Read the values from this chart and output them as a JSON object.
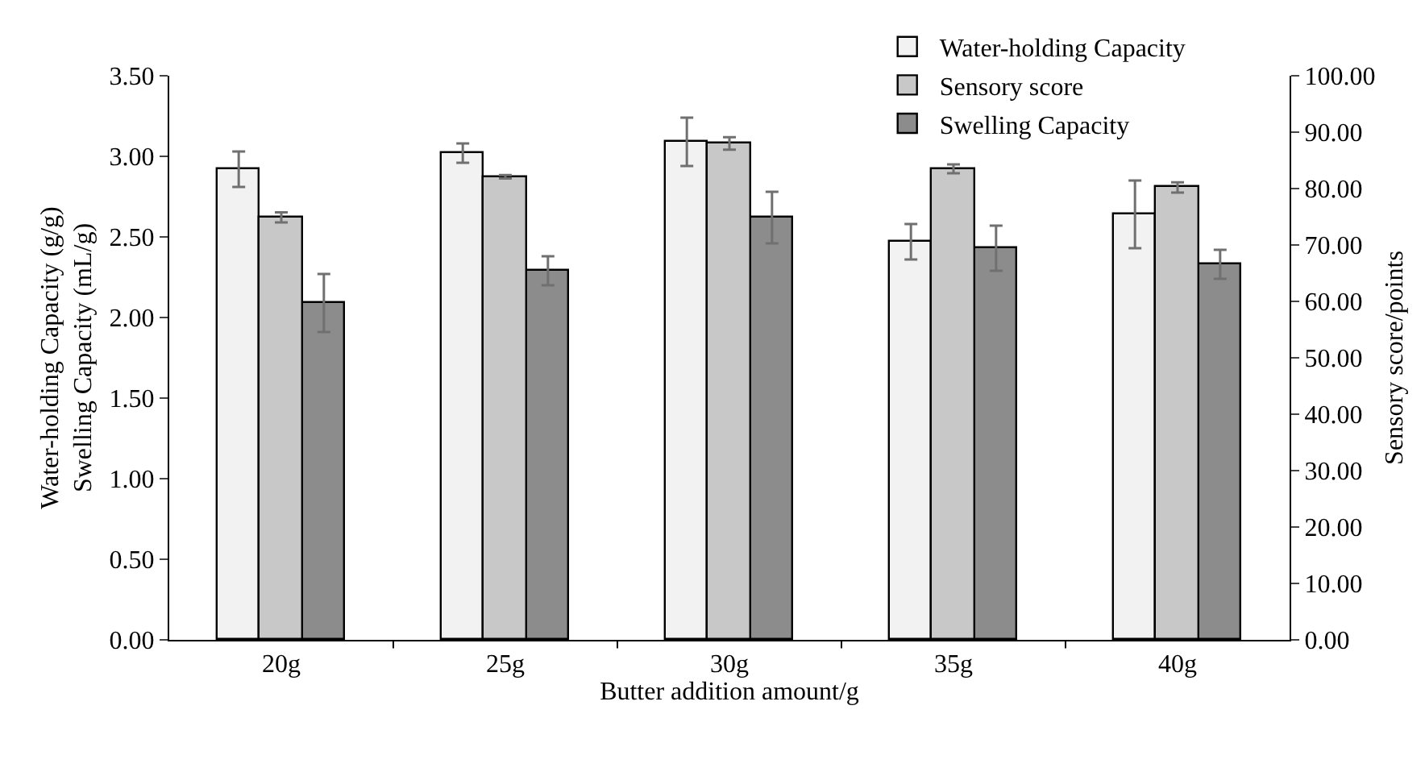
{
  "chart_data": {
    "type": "bar",
    "categories": [
      "20g",
      "25g",
      "30g",
      "35g",
      "40g"
    ],
    "xlabel": "Butter addition amount/g",
    "ylabel": "Water-holding Capacity (g/g)\nSwelling Capacity (mL/g)",
    "y2label": "Sensory score/points",
    "series": [
      {
        "name": "Water-holding Capacity",
        "color": "#f2f2f2",
        "values": [
          2.92,
          3.02,
          3.09,
          2.47,
          2.64
        ],
        "errors": [
          0.11,
          0.06,
          0.15,
          0.11,
          0.21
        ]
      },
      {
        "name": "Sensory score",
        "color": "#c8c8c8",
        "axis": "y2",
        "values": [
          74.9,
          82.1,
          88.0,
          83.5,
          80.2
        ],
        "errors": [
          0.9,
          0.3,
          1.1,
          0.8,
          0.9
        ]
      },
      {
        "name": "Swelling Capacity",
        "color": "#8c8c8c",
        "values": [
          2.09,
          2.29,
          2.62,
          2.43,
          2.33
        ],
        "errors": [
          0.18,
          0.09,
          0.16,
          0.14,
          0.09
        ]
      }
    ],
    "ylim": [
      0,
      3.5
    ],
    "yticks": [
      {
        "value": 0,
        "label": "0.00"
      },
      {
        "value": 0.5,
        "label": "0.50"
      },
      {
        "value": 1,
        "label": "1.00"
      },
      {
        "value": 1.5,
        "label": "1.50"
      },
      {
        "value": 2,
        "label": "2.00"
      },
      {
        "value": 2.5,
        "label": "2.50"
      },
      {
        "value": 3,
        "label": "3.00"
      },
      {
        "value": 3.5,
        "label": "3.50"
      }
    ],
    "y2lim": [
      0,
      100
    ],
    "y2ticks": [
      {
        "value": 0,
        "label": "0.00"
      },
      {
        "value": 10,
        "label": "10.00"
      },
      {
        "value": 20,
        "label": "20.00"
      },
      {
        "value": 30,
        "label": "30.00"
      },
      {
        "value": 40,
        "label": "40.00"
      },
      {
        "value": 50,
        "label": "50.00"
      },
      {
        "value": 60,
        "label": "60.00"
      },
      {
        "value": 70,
        "label": "70.00"
      },
      {
        "value": 80,
        "label": "80.00"
      },
      {
        "value": 90,
        "label": "90.00"
      },
      {
        "value": 100,
        "label": "100.00"
      }
    ],
    "legend": "top right"
  }
}
